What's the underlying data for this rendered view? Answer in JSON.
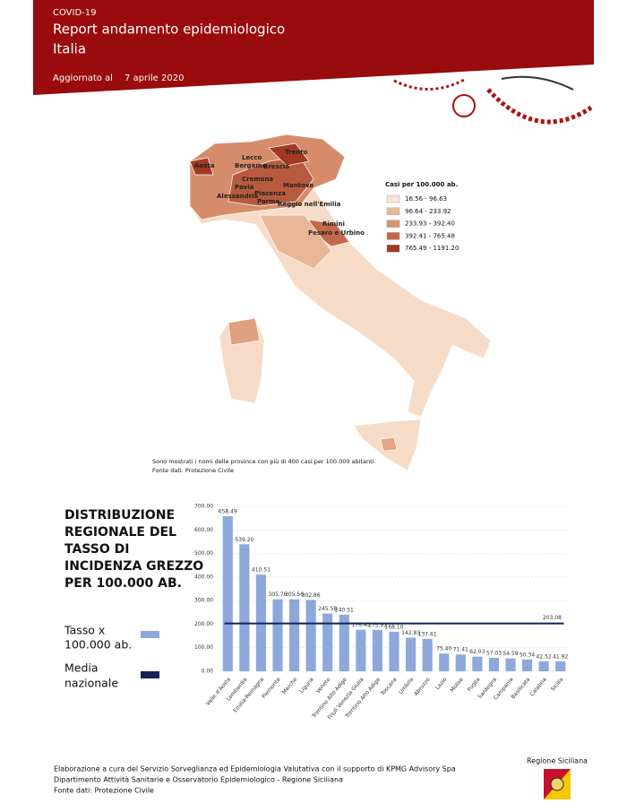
{
  "header": {
    "tag": "COVID-19",
    "title_lines": [
      "Report andamento epidemiologico",
      "Italia"
    ],
    "updated_label": "Aggiornato al",
    "updated_date": "7 aprile 2020"
  },
  "map": {
    "province_labels": [
      "Trento",
      "Lecco",
      "Aosta",
      "Bergamo",
      "Brescia",
      "Cremona",
      "Mantova",
      "Pavia",
      "Piacenza",
      "Alessandria",
      "Parma",
      "Reggio nell'Emilia",
      "Rimini",
      "Pesaro e Urbino"
    ],
    "legend_title": "Casi per 100.000 ab.",
    "legend": [
      {
        "label": "16.56 - 96.63",
        "color": "#f8e3d2"
      },
      {
        "label": "96.64 - 233.92",
        "color": "#eab79a"
      },
      {
        "label": "233.93 - 392.40",
        "color": "#da9474"
      },
      {
        "label": "392.41 - 765.48",
        "color": "#c4684a"
      },
      {
        "label": "765.49 - 1191.20",
        "color": "#a23a22"
      }
    ],
    "notes": [
      "Sono mostrati i nomi delle province con più di 400 casi per 100.000 abitanti.",
      "Fonte dati: Protezione Civile"
    ]
  },
  "chart_data": {
    "type": "bar",
    "title_lines": [
      "DISTRIBUZIONE",
      "REGIONALE DEL",
      "TASSO DI",
      "INCIDENZA GREZZO",
      "PER 100.000 AB."
    ],
    "categories": [
      "Valle d'Aosta",
      "Lombardia",
      "Emilia-Romagna",
      "Piemonte",
      "Marche",
      "Liguria",
      "Veneto",
      "Trentino Alto Adige",
      "Friuli Venezia Giulia",
      "Trentino Alto Adige",
      "Toscana",
      "Umbria",
      "Abruzzo",
      "Lazio",
      "Molise",
      "Puglia",
      "Sardegna",
      "Campania",
      "Basilicata",
      "Calabria",
      "Sicilia"
    ],
    "series": [
      {
        "name": [
          "Tasso x",
          "100.000 ab."
        ],
        "color": "#8ea8dc",
        "values": [
          658.49,
          539.2,
          410.51,
          305.76,
          305.56,
          302.86,
          245.58,
          240.51,
          176.43,
          175.91,
          168.1,
          142.83,
          137.61,
          75.4,
          71.41,
          62.03,
          57.03,
          54.59,
          50.34,
          42.52,
          41.92
        ],
        "value_labels": [
          "658.49",
          "539.20",
          "410.51",
          "305.76",
          "305.56",
          "302.86",
          "245.58",
          "240.51",
          "176.43",
          "175.91",
          "168.10",
          "142.83",
          "137.61",
          "75.40",
          "71.41",
          "62.03",
          "57.03",
          "54.59",
          "50.34",
          "42.52",
          "41.92"
        ]
      }
    ],
    "average": {
      "name": [
        "Media",
        "nazionale"
      ],
      "color": "#14215a",
      "value": 203.08
    },
    "ylim": [
      0,
      700
    ],
    "yticks": [
      {
        "value": 0,
        "label": "0.00"
      },
      {
        "value": 100,
        "label": "100.00"
      },
      {
        "value": 200,
        "label": "200.00"
      },
      {
        "value": 300,
        "label": "300.00"
      },
      {
        "value": 400,
        "label": "400.00"
      },
      {
        "value": 500,
        "label": "500.00"
      },
      {
        "value": 600,
        "label": "600.00"
      },
      {
        "value": 700,
        "label": "700.00"
      }
    ],
    "grid": true
  },
  "footer": {
    "lines": [
      "Elaborazione a cura del Servizio Sorveglianza ed Epidemiologia Valutativa  con il supporto di KPMG Advisory Spa",
      "Dipartimento Attività Sanitarie e Osservatorio Epidemiologico - Regione Siciliana",
      "Fonte dati: Protezione Civile"
    ],
    "logo_label": "Regione Siciliana"
  }
}
